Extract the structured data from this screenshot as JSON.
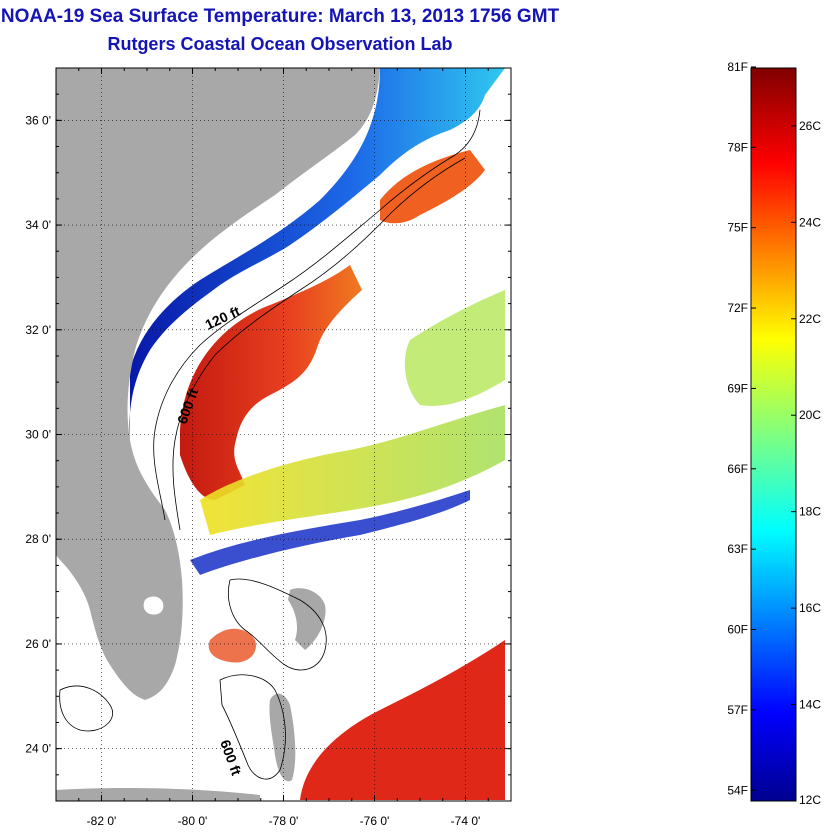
{
  "header": {
    "title": "NOAA-19 Sea Surface Temperature:  March 13, 2013 1756 GMT",
    "subtitle": "Rutgers Coastal Ocean Observation Lab"
  },
  "map": {
    "lon_range": [
      -83,
      -73
    ],
    "lat_range": [
      23,
      37
    ],
    "lat_ticks": [
      {
        "value": 36,
        "label": "36 0'"
      },
      {
        "value": 34,
        "label": "34 0'"
      },
      {
        "value": 32,
        "label": "32 0'"
      },
      {
        "value": 30,
        "label": "30 0'"
      },
      {
        "value": 28,
        "label": "28 0'"
      },
      {
        "value": 26,
        "label": "26 0'"
      },
      {
        "value": 24,
        "label": "24 0'"
      }
    ],
    "lon_ticks": [
      {
        "value": -82,
        "label": "-82 0'"
      },
      {
        "value": -80,
        "label": "-80 0'"
      },
      {
        "value": -78,
        "label": "-78 0'"
      },
      {
        "value": -76,
        "label": "-76 0'"
      },
      {
        "value": -74,
        "label": "-74 0'"
      }
    ],
    "contour_labels": [
      "120 ft",
      "600 ft",
      "600 ft"
    ],
    "colors": {
      "land": "#a8a8a8",
      "cloud": "#ffffff",
      "cold": "#0a1fb0",
      "warm": "#e8301a"
    }
  },
  "colorbar": {
    "range_c": [
      12,
      27.2
    ],
    "fahrenheit_labels": [
      "81F",
      "78F",
      "75F",
      "72F",
      "69F",
      "66F",
      "63F",
      "60F",
      "57F",
      "54F"
    ],
    "celsius_labels": [
      "26C",
      "24C",
      "22C",
      "20C",
      "18C",
      "16C",
      "14C",
      "12C"
    ]
  }
}
